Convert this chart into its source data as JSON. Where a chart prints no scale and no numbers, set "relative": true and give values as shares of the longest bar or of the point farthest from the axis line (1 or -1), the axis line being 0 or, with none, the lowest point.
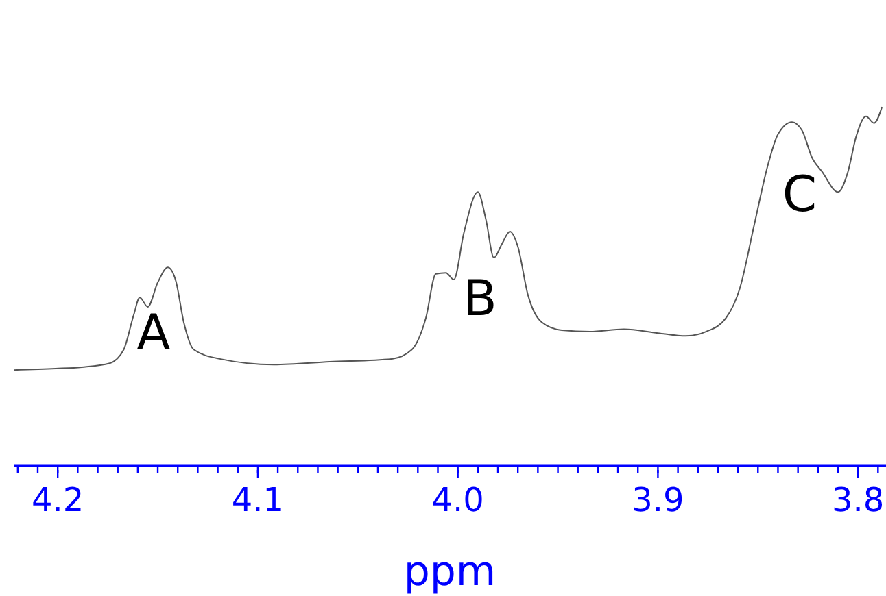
{
  "chart_data": {
    "type": "line",
    "xlabel": "ppm",
    "relative": true,
    "marker": "none",
    "color": "#555555",
    "xlim": [
      4.222,
      3.786
    ],
    "xticks": [
      {
        "value": 4.22,
        "label": null
      },
      {
        "value": 4.21,
        "label": null
      },
      {
        "value": 4.2,
        "label": "4.2"
      },
      {
        "value": 4.19,
        "label": null
      },
      {
        "value": 4.18,
        "label": null
      },
      {
        "value": 4.17,
        "label": null
      },
      {
        "value": 4.16,
        "label": null
      },
      {
        "value": 4.15,
        "label": null
      },
      {
        "value": 4.14,
        "label": null
      },
      {
        "value": 4.13,
        "label": null
      },
      {
        "value": 4.12,
        "label": null
      },
      {
        "value": 4.11,
        "label": null
      },
      {
        "value": 4.1,
        "label": "4.1"
      },
      {
        "value": 4.09,
        "label": null
      },
      {
        "value": 4.08,
        "label": null
      },
      {
        "value": 4.07,
        "label": null
      },
      {
        "value": 4.06,
        "label": null
      },
      {
        "value": 4.05,
        "label": null
      },
      {
        "value": 4.04,
        "label": null
      },
      {
        "value": 4.03,
        "label": null
      },
      {
        "value": 4.02,
        "label": null
      },
      {
        "value": 4.01,
        "label": null
      },
      {
        "value": 4.0,
        "label": "4.0"
      },
      {
        "value": 3.99,
        "label": null
      },
      {
        "value": 3.98,
        "label": null
      },
      {
        "value": 3.97,
        "label": null
      },
      {
        "value": 3.96,
        "label": null
      },
      {
        "value": 3.95,
        "label": null
      },
      {
        "value": 3.94,
        "label": null
      },
      {
        "value": 3.93,
        "label": null
      },
      {
        "value": 3.92,
        "label": null
      },
      {
        "value": 3.91,
        "label": null
      },
      {
        "value": 3.9,
        "label": "3.9"
      },
      {
        "value": 3.89,
        "label": null
      },
      {
        "value": 3.88,
        "label": null
      },
      {
        "value": 3.87,
        "label": null
      },
      {
        "value": 3.86,
        "label": null
      },
      {
        "value": 3.85,
        "label": null
      },
      {
        "value": 3.84,
        "label": null
      },
      {
        "value": 3.83,
        "label": null
      },
      {
        "value": 3.82,
        "label": null
      },
      {
        "value": 3.81,
        "label": null
      },
      {
        "value": 3.8,
        "label": "3.8"
      },
      {
        "value": 3.79,
        "label": null
      }
    ],
    "x": [
      4.222,
      4.201,
      4.188,
      4.174,
      4.167,
      4.162,
      4.159,
      4.155,
      4.15,
      4.145,
      4.141,
      4.137,
      4.132,
      4.119,
      4.092,
      4.064,
      4.033,
      4.023,
      4.016,
      4.011,
      4.006,
      4.002,
      3.997,
      3.99,
      3.986,
      3.982,
      3.978,
      3.974,
      3.97,
      3.965,
      3.958,
      3.948,
      3.934,
      3.917,
      3.9,
      3.886,
      3.876,
      3.866,
      3.859,
      3.852,
      3.845,
      3.84,
      3.833,
      3.828,
      3.823,
      3.818,
      3.81,
      3.805,
      3.801,
      3.796,
      3.792,
      3.788
    ],
    "values": [
      0.267,
      0.271,
      0.275,
      0.286,
      0.324,
      0.421,
      0.469,
      0.443,
      0.511,
      0.553,
      0.516,
      0.4,
      0.324,
      0.298,
      0.282,
      0.29,
      0.298,
      0.324,
      0.412,
      0.535,
      0.538,
      0.519,
      0.649,
      0.763,
      0.687,
      0.58,
      0.618,
      0.653,
      0.611,
      0.477,
      0.4,
      0.378,
      0.374,
      0.381,
      0.37,
      0.362,
      0.374,
      0.412,
      0.496,
      0.668,
      0.839,
      0.924,
      0.958,
      0.935,
      0.859,
      0.82,
      0.763,
      0.82,
      0.916,
      0.974,
      0.955,
      1
    ],
    "annotations": [
      "A",
      "B",
      "C"
    ]
  }
}
